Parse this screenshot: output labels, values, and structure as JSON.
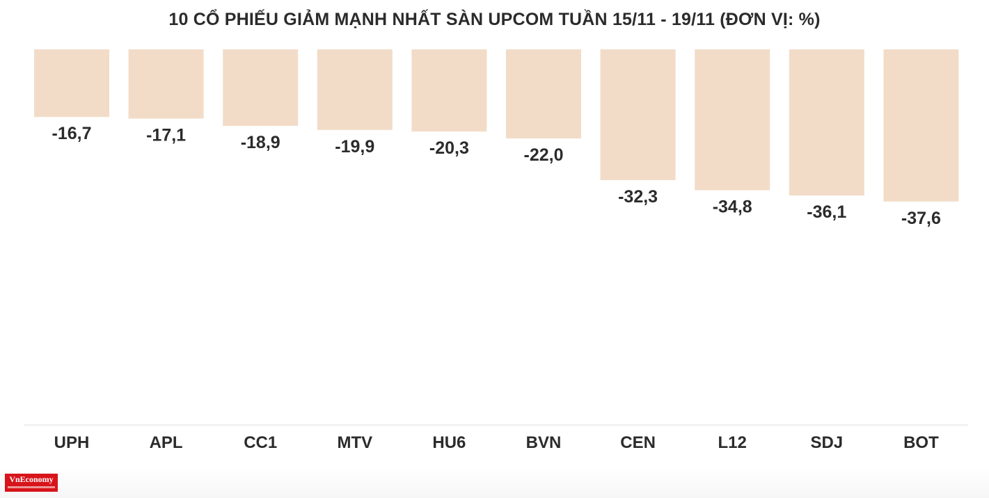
{
  "title": "10 CỔ PHIẾU GIẢM MẠNH NHẤT SÀN UPCOM TUẦN 15/11 - 19/11 (ĐƠN VỊ: %)",
  "logo_text": "VnEconomy",
  "colors": {
    "bar": "#f2dcc8",
    "text": "#2b2b2b",
    "axis": "#dddddd",
    "logo": "#d7141a"
  },
  "chart_data": {
    "type": "bar",
    "title": "10 CỔ PHIẾU GIẢM MẠNH NHẤT SÀN UPCOM TUẦN 15/11 - 19/11 (ĐƠN VỊ: %)",
    "categories": [
      "UPH",
      "APL",
      "CC1",
      "MTV",
      "HU6",
      "BVN",
      "CEN",
      "L12",
      "SDJ",
      "BOT"
    ],
    "values": [
      -16.7,
      -17.1,
      -18.9,
      -19.9,
      -20.3,
      -22.0,
      -32.3,
      -34.8,
      -36.1,
      -37.6
    ],
    "value_labels": [
      "-16,7",
      "-17,1",
      "-18,9",
      "-19,9",
      "-20,3",
      "-22,0",
      "-32,3",
      "-34,8",
      "-36,1",
      "-37,6"
    ],
    "xlabel": "",
    "ylabel": "",
    "grid": false,
    "legend": "none"
  }
}
